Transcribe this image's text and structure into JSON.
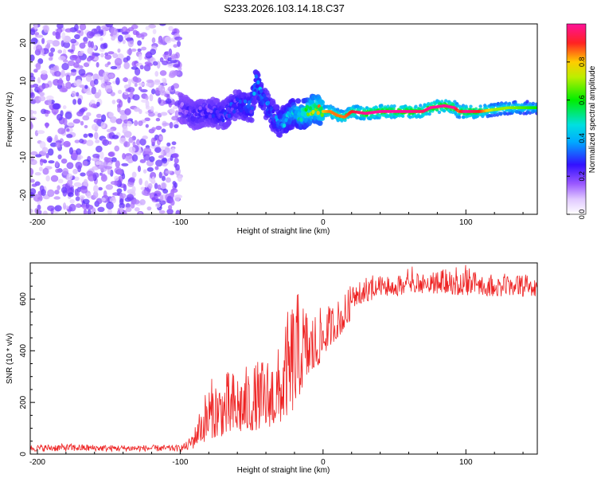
{
  "title": "S233.2026.103.14.18.C37",
  "colors": {
    "snr_line": "#ee2222",
    "axis": "#000000",
    "background": "#ffffff"
  },
  "chart_data": [
    {
      "type": "heatmap",
      "name": "spectrogram",
      "xlabel": "Height of straight line (km)",
      "ylabel": "Frequency (Hz)",
      "xlim": [
        -205,
        150
      ],
      "ylim": [
        -25,
        25
      ],
      "xticks": [
        -200,
        -100,
        0,
        100
      ],
      "xtick_labels": [
        "-200",
        "-100",
        "0",
        "100"
      ],
      "yticks": [
        -20,
        -10,
        0,
        10,
        20
      ],
      "ytick_labels": [
        "-20",
        "-10",
        "0",
        "10",
        "20"
      ],
      "colorbar": {
        "label": "Normalized spectral amplitude",
        "range": [
          0,
          1
        ],
        "ticks": [
          0.0,
          0.2,
          0.4,
          0.6,
          0.8
        ],
        "tick_labels": [
          "0.0",
          "0.2",
          "0.4",
          "0.6",
          "0.8"
        ]
      },
      "dominant_frequency_ridge": {
        "x": [
          -100,
          -90,
          -80,
          -70,
          -60,
          -50,
          -47,
          -44,
          -40,
          -35,
          -30,
          -25,
          -20,
          -15,
          -10,
          -5,
          0,
          5,
          10,
          15,
          20,
          30,
          40,
          60,
          70,
          75,
          85,
          92,
          95,
          100,
          110,
          120,
          130,
          140,
          150
        ],
        "freq_hz": [
          3,
          1,
          2,
          1,
          4,
          3,
          10,
          7,
          4,
          1,
          -1,
          0,
          2,
          1,
          2,
          3,
          2,
          2,
          1,
          0.5,
          2,
          1.5,
          2,
          2,
          2,
          3,
          3.5,
          3,
          2,
          2,
          2,
          2.5,
          3,
          3,
          3
        ],
        "peak_amplitude": [
          0.2,
          0.25,
          0.25,
          0.3,
          0.3,
          0.35,
          0.4,
          0.4,
          0.35,
          0.35,
          0.4,
          0.45,
          0.5,
          0.6,
          0.7,
          0.8,
          0.8,
          0.85,
          0.85,
          0.85,
          0.9,
          1,
          1,
          1,
          0.95,
          1,
          1,
          1,
          0.85,
          1,
          0.9,
          0.7,
          0.7,
          0.65,
          0.6
        ]
      },
      "regions": {
        "broadband_noise_x": [
          -205,
          -100
        ],
        "broadband_amplitude": 0.15
      }
    },
    {
      "type": "line",
      "name": "snr",
      "xlabel": "Height of straight line (km)",
      "ylabel": "SNR (10 * v/v)",
      "xlim": [
        -205,
        150
      ],
      "ylim": [
        0,
        740
      ],
      "xticks": [
        -200,
        -100,
        0,
        100
      ],
      "xtick_labels": [
        "-200",
        "-100",
        "0",
        "100"
      ],
      "yticks": [
        0,
        200,
        400,
        600
      ],
      "ytick_labels": [
        "0",
        "200",
        "400",
        "600"
      ],
      "series": [
        {
          "name": "SNR",
          "x": [
            -205,
            -180,
            -150,
            -120,
            -100,
            -95,
            -90,
            -85,
            -80,
            -70,
            -60,
            -50,
            -40,
            -30,
            -25,
            -20,
            -15,
            -10,
            -5,
            0,
            5,
            10,
            15,
            20,
            25,
            30,
            40,
            50,
            60,
            80,
            100,
            120,
            150
          ],
          "low": [
            10,
            10,
            10,
            10,
            10,
            12,
            20,
            40,
            60,
            70,
            80,
            90,
            100,
            120,
            150,
            170,
            250,
            300,
            320,
            380,
            420,
            450,
            480,
            530,
            560,
            580,
            590,
            600,
            610,
            610,
            600,
            600,
            600
          ],
          "high": [
            35,
            40,
            35,
            35,
            35,
            50,
            100,
            200,
            290,
            320,
            330,
            350,
            380,
            420,
            550,
            640,
            620,
            560,
            560,
            570,
            580,
            600,
            620,
            660,
            680,
            690,
            700,
            700,
            730,
            720,
            740,
            700,
            700
          ]
        }
      ]
    }
  ]
}
